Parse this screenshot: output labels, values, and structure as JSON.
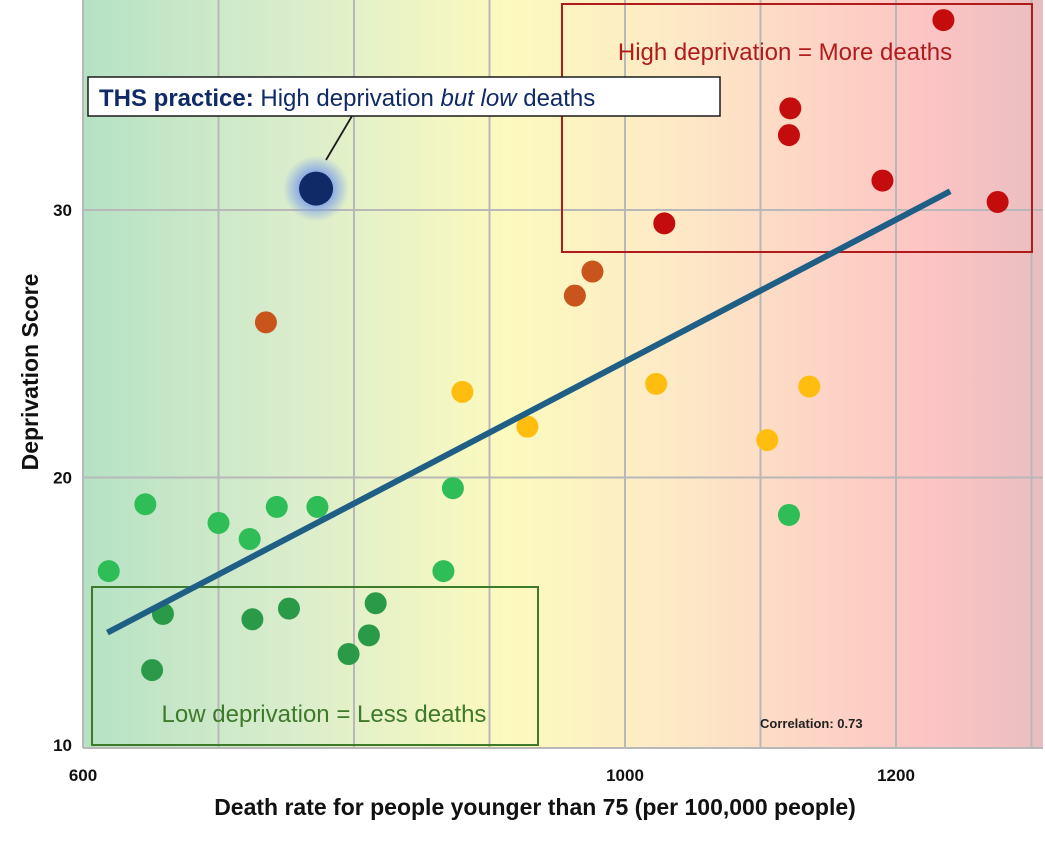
{
  "chart_data": {
    "type": "scatter",
    "title": "",
    "xlabel": "Death rate for people younger than 75 (per 100,000 people)",
    "ylabel": "Deprivation Score",
    "xlim": [
      600,
      1310
    ],
    "ylim": [
      10,
      37.5
    ],
    "x_ticks": [
      600,
      1000,
      1200
    ],
    "x_tick_labels": [
      "600",
      "1000",
      "1200"
    ],
    "y_ticks": [
      10,
      20,
      30
    ],
    "y_tick_labels": [
      "10",
      "20",
      "30"
    ],
    "grid": true,
    "background": "gradient green-yellow-red from low to high death rate",
    "colors": {
      "dark_green": "#2a9a49",
      "green": "#2ebd57",
      "orange": "#ffbe0f",
      "brown": "#c9541c",
      "red": "#c40c0c",
      "highlight": "#0f2a66",
      "trendline": "#1f5f86"
    },
    "series": [
      {
        "group": "low",
        "color": "#2ebd57",
        "points": [
          [
            619,
            16.5
          ],
          [
            646,
            19.0
          ],
          [
            700,
            18.3
          ],
          [
            723,
            17.7
          ],
          [
            743,
            18.9
          ],
          [
            773,
            18.9
          ],
          [
            866,
            16.5
          ],
          [
            873,
            19.6
          ],
          [
            1121,
            18.6
          ]
        ]
      },
      {
        "group": "low-dark",
        "color": "#2a9a49",
        "points": [
          [
            659,
            14.9
          ],
          [
            651,
            12.8
          ],
          [
            725,
            14.7
          ],
          [
            752,
            15.1
          ],
          [
            796,
            13.4
          ],
          [
            811,
            14.1
          ],
          [
            816,
            15.3
          ]
        ]
      },
      {
        "group": "medium",
        "color": "#ffbe0f",
        "points": [
          [
            880,
            23.2
          ],
          [
            928,
            21.9
          ],
          [
            1023,
            23.5
          ],
          [
            1105,
            21.4
          ],
          [
            1136,
            23.4
          ]
        ]
      },
      {
        "group": "medium-high",
        "color": "#c9541c",
        "points": [
          [
            735,
            25.8
          ],
          [
            963,
            26.8
          ],
          [
            976,
            27.7
          ]
        ]
      },
      {
        "group": "high",
        "color": "#c40c0c",
        "points": [
          [
            1029,
            29.5
          ],
          [
            1121,
            32.8
          ],
          [
            1122,
            33.8
          ],
          [
            1190,
            31.1
          ],
          [
            1235,
            37.1
          ],
          [
            1275,
            30.3
          ]
        ]
      }
    ],
    "highlight_point": {
      "x": 772,
      "y": 30.8,
      "label": "THS practice"
    },
    "trendline": {
      "x": [
        618,
        1240
      ],
      "y": [
        14.2,
        30.7
      ]
    },
    "correlation_label": "Correlation: 0.73"
  },
  "annotations": {
    "callout_bold": "THS practice:",
    "callout_normal_1": " High deprivation ",
    "callout_italic": "but low",
    "callout_normal_2": " deaths",
    "high_box_label": "High deprivation = More deaths",
    "low_box_label": "Low deprivation = Less deaths",
    "high_box_color": "#b01c1c",
    "low_box_color": "#3d7a29"
  }
}
